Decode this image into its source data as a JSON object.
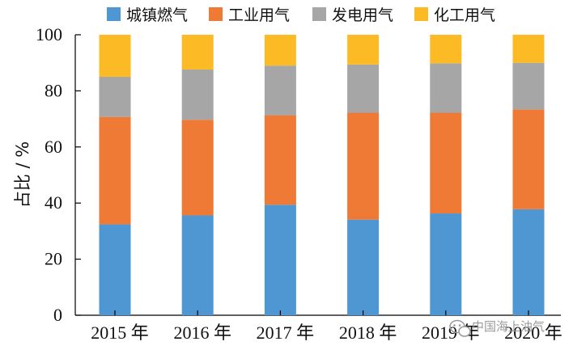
{
  "chart_data": {
    "type": "bar",
    "stacked": true,
    "title": "",
    "xlabel": "",
    "ylabel": "占比 / %",
    "ylim": [
      0,
      100
    ],
    "yticks": [
      0,
      20,
      40,
      60,
      80,
      100
    ],
    "categories": [
      "2015 年",
      "2016 年",
      "2017 年",
      "2018 年",
      "2019 年",
      "2020 年"
    ],
    "series": [
      {
        "name": "城镇燃气",
        "color": "#4e97d2",
        "values": [
          32.4,
          35.6,
          39.4,
          34.1,
          36.3,
          37.8
        ]
      },
      {
        "name": "工业用气",
        "color": "#ee7a35",
        "values": [
          38.3,
          34.1,
          31.9,
          38.1,
          35.9,
          35.6
        ]
      },
      {
        "name": "发电用气",
        "color": "#a6a6a6",
        "values": [
          14.3,
          17.9,
          17.7,
          17.2,
          17.6,
          16.6
        ]
      },
      {
        "name": "化工用气",
        "color": "#fcbb25",
        "values": [
          15.0,
          12.4,
          11.0,
          10.6,
          10.2,
          10.0
        ]
      }
    ],
    "legend_position": "top"
  },
  "watermark": {
    "icon": "wechat-icon",
    "text": "中国海上油气"
  }
}
